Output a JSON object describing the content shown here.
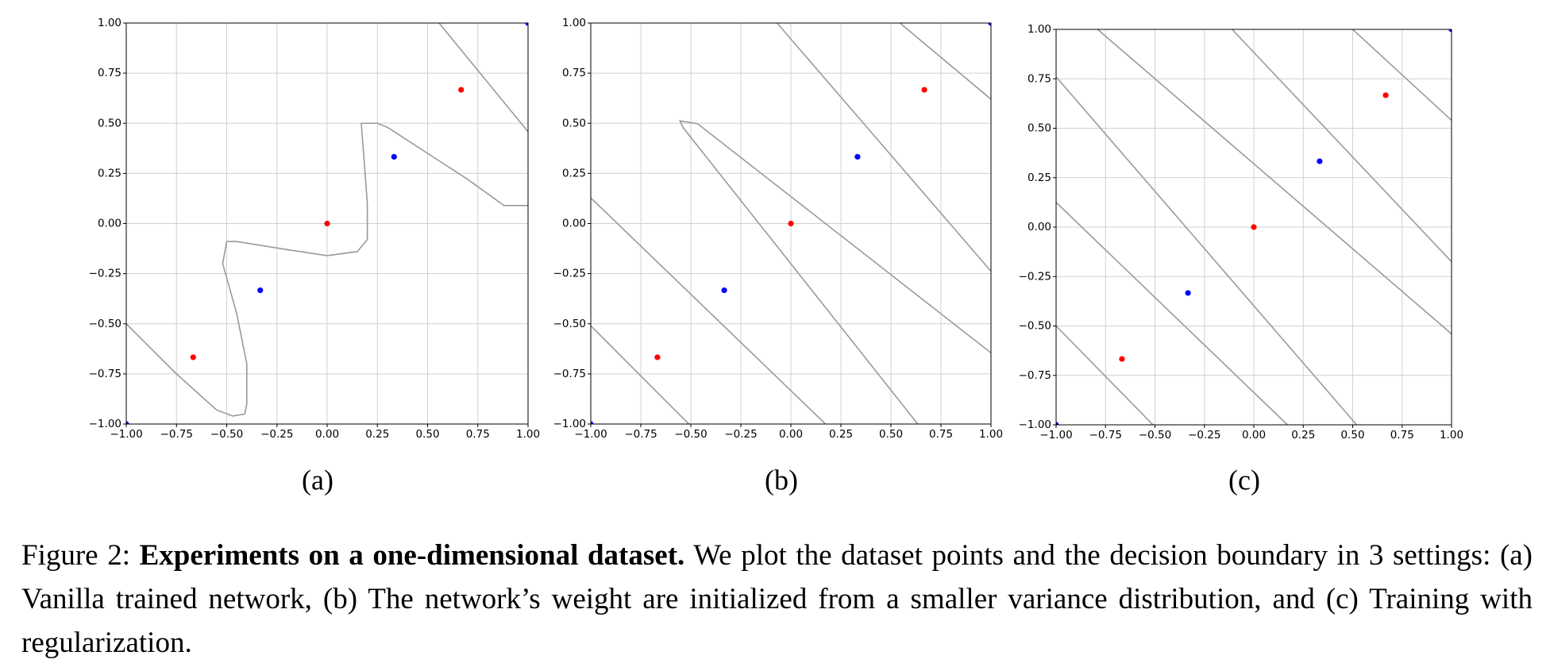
{
  "chart_data": [
    {
      "type": "scatter",
      "subcaption": "(a)",
      "xlim": [
        -1,
        1
      ],
      "ylim": [
        -1,
        1
      ],
      "grid": true,
      "xticks": [
        {
          "value": -1,
          "label": "−1.00"
        },
        {
          "value": -0.75,
          "label": "−0.75"
        },
        {
          "value": -0.5,
          "label": "−0.50"
        },
        {
          "value": -0.25,
          "label": "−0.25"
        },
        {
          "value": 0,
          "label": "0.00"
        },
        {
          "value": 0.25,
          "label": "0.25"
        },
        {
          "value": 0.5,
          "label": "0.50"
        },
        {
          "value": 0.75,
          "label": "0.75"
        },
        {
          "value": 1,
          "label": "1.00"
        }
      ],
      "yticks": [
        {
          "value": -1,
          "label": "−1.00"
        },
        {
          "value": -0.75,
          "label": "−0.75"
        },
        {
          "value": -0.5,
          "label": "−0.50"
        },
        {
          "value": -0.25,
          "label": "−0.25"
        },
        {
          "value": 0,
          "label": "0.00"
        },
        {
          "value": 0.25,
          "label": "0.25"
        },
        {
          "value": 0.5,
          "label": "0.50"
        },
        {
          "value": 0.75,
          "label": "0.75"
        },
        {
          "value": 1,
          "label": "1.00"
        }
      ],
      "series": [
        {
          "color": "#0000ff",
          "x": [
            -1,
            -0.333,
            0.333,
            1
          ],
          "y": [
            -1,
            -0.333,
            0.333,
            1
          ]
        },
        {
          "color": "#ff0000",
          "x": [
            -0.667,
            0,
            0.667
          ],
          "y": [
            -0.667,
            0,
            0.667
          ]
        }
      ],
      "boundary_color": "#9a9a9a",
      "boundaries": [
        {
          "x": [
            -1,
            -0.75,
            -0.55,
            -0.47,
            -0.41,
            -0.4,
            -0.4,
            -0.45,
            -0.52,
            -0.5,
            -0.45,
            -0.2,
            0,
            0.15,
            0.2,
            0.2,
            0.17,
            0.25,
            0.3,
            0.5,
            0.7,
            0.88,
            1
          ],
          "y": [
            -0.5,
            -0.75,
            -0.93,
            -0.96,
            -0.95,
            -0.9,
            -0.7,
            -0.45,
            -0.2,
            -0.09,
            -0.09,
            -0.13,
            -0.16,
            -0.14,
            -0.08,
            0.1,
            0.5,
            0.5,
            0.48,
            0.35,
            0.22,
            0.09,
            0.09
          ]
        },
        {
          "x": [
            0.557,
            1
          ],
          "y": [
            1,
            0.458
          ]
        }
      ]
    },
    {
      "type": "scatter",
      "subcaption": "(b)",
      "xlim": [
        -1,
        1
      ],
      "ylim": [
        -1,
        1
      ],
      "grid": true,
      "xticks": [
        {
          "value": -1,
          "label": "−1.00"
        },
        {
          "value": -0.75,
          "label": "−0.75"
        },
        {
          "value": -0.5,
          "label": "−0.50"
        },
        {
          "value": -0.25,
          "label": "−0.25"
        },
        {
          "value": 0,
          "label": "0.00"
        },
        {
          "value": 0.25,
          "label": "0.25"
        },
        {
          "value": 0.5,
          "label": "0.50"
        },
        {
          "value": 0.75,
          "label": "0.75"
        },
        {
          "value": 1,
          "label": "1.00"
        }
      ],
      "yticks": [
        {
          "value": -1,
          "label": "−1.00"
        },
        {
          "value": -0.75,
          "label": "−0.75"
        },
        {
          "value": -0.5,
          "label": "−0.50"
        },
        {
          "value": -0.25,
          "label": "−0.25"
        },
        {
          "value": 0,
          "label": "0.00"
        },
        {
          "value": 0.25,
          "label": "0.25"
        },
        {
          "value": 0.5,
          "label": "0.50"
        },
        {
          "value": 0.75,
          "label": "0.75"
        },
        {
          "value": 1,
          "label": "1.00"
        }
      ],
      "series": [
        {
          "color": "#0000ff",
          "x": [
            -1,
            -0.333,
            0.333,
            1
          ],
          "y": [
            -1,
            -0.333,
            0.333,
            1
          ]
        },
        {
          "color": "#ff0000",
          "x": [
            -0.667,
            0,
            0.667
          ],
          "y": [
            -0.667,
            0,
            0.667
          ]
        }
      ],
      "boundary_color": "#9a9a9a",
      "boundaries": [
        {
          "x": [
            -1,
            0.173
          ],
          "y": [
            0.128,
            -1
          ]
        },
        {
          "x": [
            -1,
            -0.51
          ],
          "y": [
            -0.51,
            -1
          ]
        },
        {
          "x": [
            0.634,
            -0.54,
            -0.554,
            -0.465,
            1
          ],
          "y": [
            -1,
            0.48,
            0.512,
            0.497,
            -0.645
          ]
        },
        {
          "x": [
            -0.069,
            1
          ],
          "y": [
            1,
            -0.238
          ]
        },
        {
          "x": [
            0.545,
            1
          ],
          "y": [
            1,
            0.62
          ]
        }
      ]
    },
    {
      "type": "scatter",
      "subcaption": "(c)",
      "xlim": [
        -1,
        1
      ],
      "ylim": [
        -1,
        1
      ],
      "grid": true,
      "xticks": [
        {
          "value": -1,
          "label": "−1.00"
        },
        {
          "value": -0.75,
          "label": "−0.75"
        },
        {
          "value": -0.5,
          "label": "−0.50"
        },
        {
          "value": -0.25,
          "label": "−0.25"
        },
        {
          "value": 0,
          "label": "0.00"
        },
        {
          "value": 0.25,
          "label": "0.25"
        },
        {
          "value": 0.5,
          "label": "0.50"
        },
        {
          "value": 0.75,
          "label": "0.75"
        },
        {
          "value": 1,
          "label": "1.00"
        }
      ],
      "yticks": [
        {
          "value": -1,
          "label": "−1.00"
        },
        {
          "value": -0.75,
          "label": "−0.75"
        },
        {
          "value": -0.5,
          "label": "−0.50"
        },
        {
          "value": -0.25,
          "label": "−0.25"
        },
        {
          "value": 0,
          "label": "0.00"
        },
        {
          "value": 0.25,
          "label": "0.25"
        },
        {
          "value": 0.5,
          "label": "0.50"
        },
        {
          "value": 0.75,
          "label": "0.75"
        },
        {
          "value": 1,
          "label": "1.00"
        }
      ],
      "series": [
        {
          "color": "#0000ff",
          "x": [
            -1,
            -0.333,
            0.333,
            1
          ],
          "y": [
            -1,
            -0.333,
            0.333,
            1
          ]
        },
        {
          "color": "#ff0000",
          "x": [
            -0.667,
            0,
            0.667
          ],
          "y": [
            -0.667,
            0,
            0.667
          ]
        }
      ],
      "boundary_color": "#9a9a9a",
      "boundaries": [
        {
          "x": [
            -0.79,
            1
          ],
          "y": [
            1,
            -0.54
          ]
        },
        {
          "x": [
            -1,
            0.52
          ],
          "y": [
            0.76,
            -1
          ]
        },
        {
          "x": [
            -1,
            0.17
          ],
          "y": [
            0.125,
            -1
          ]
        },
        {
          "x": [
            -1,
            -0.51
          ],
          "y": [
            -0.5,
            -1
          ]
        },
        {
          "x": [
            -0.11,
            1
          ],
          "y": [
            1,
            -0.175
          ]
        },
        {
          "x": [
            0.5,
            1
          ],
          "y": [
            1,
            0.54
          ]
        }
      ]
    }
  ],
  "caption": {
    "label": "Figure 2:",
    "heading": "Experiments on a one-dimensional dataset.",
    "text": "We plot the dataset points and the decision boundary in 3 settings: (a) Vanilla trained network, (b) The network’s weight are initialized from a smaller variance distribution, and (c) Training with regularization."
  }
}
